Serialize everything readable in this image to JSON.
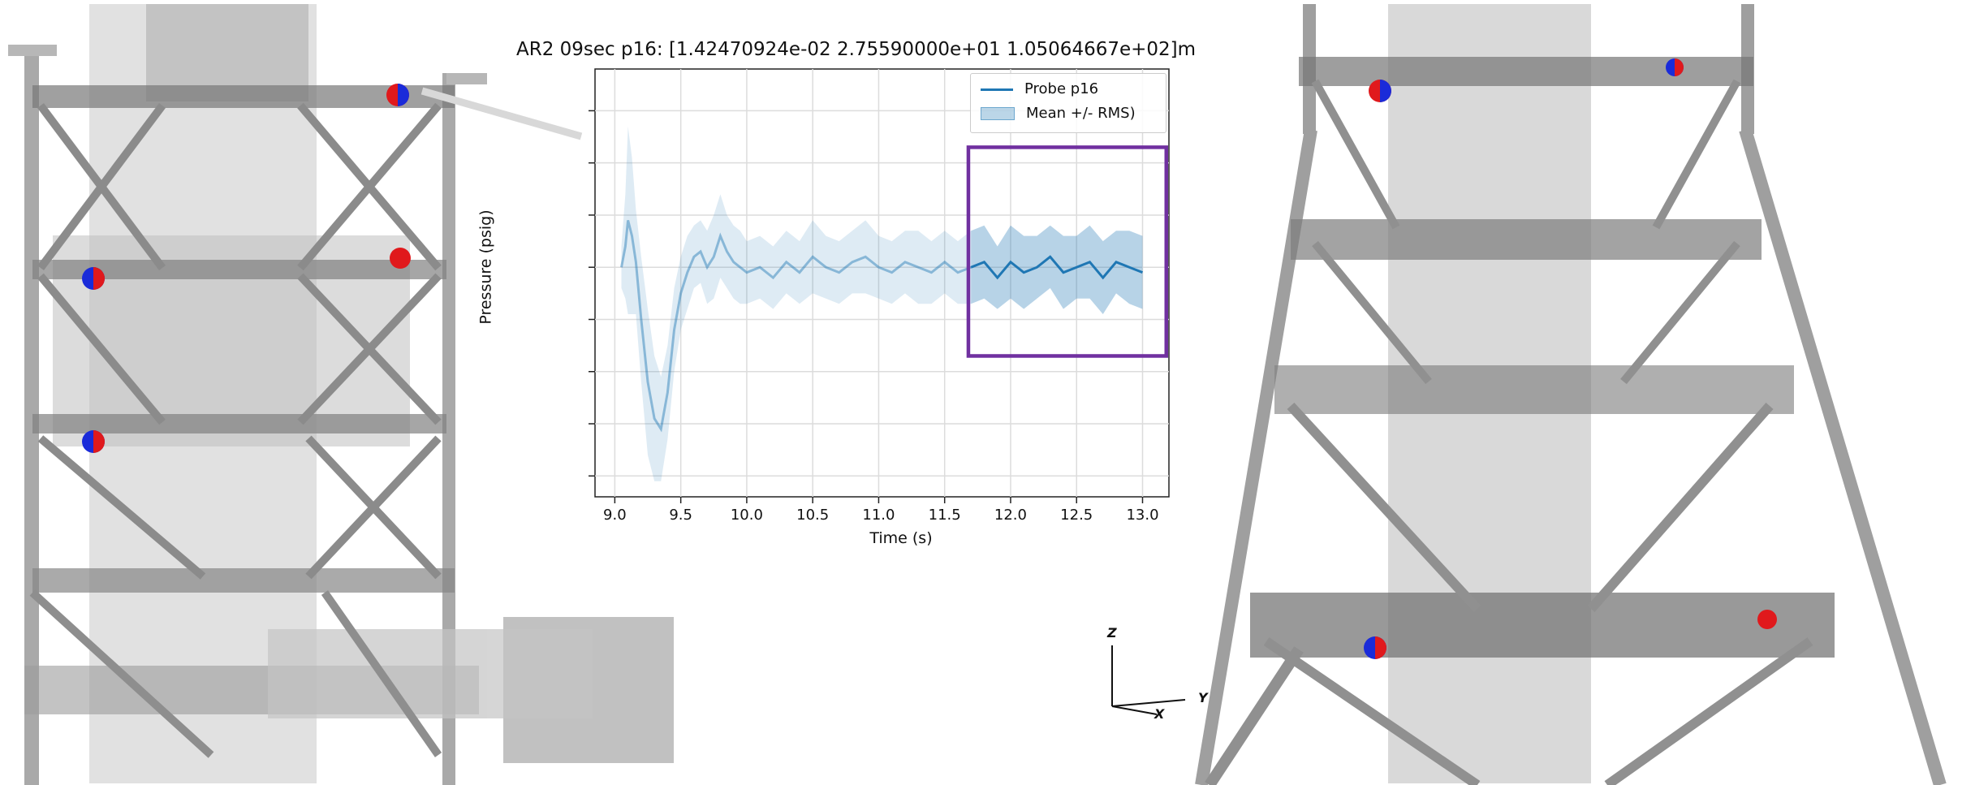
{
  "chart_data": {
    "type": "line",
    "title": "AR2 09sec p16: [1.42470924e-02 2.75590000e+01 1.05064667e+02]m",
    "xlabel": "Time (s)",
    "ylabel": "Pressure (psig)",
    "xlim": [
      8.85,
      13.2
    ],
    "ylim": [
      -4.4,
      3.8
    ],
    "x_ticks": [
      "9.0",
      "9.5",
      "10.0",
      "10.5",
      "11.0",
      "11.5",
      "12.0",
      "12.5",
      "13.0"
    ],
    "grid": true,
    "legend_position": "top-right",
    "legend": [
      "Probe p16",
      "Mean +/- RMS)"
    ],
    "highlight_window": {
      "x_start": 11.68,
      "x_end": 13.18,
      "y_min": -1.7,
      "y_max": 2.3
    },
    "series": [
      {
        "name": "Probe p16",
        "x": [
          9.05,
          9.08,
          9.1,
          9.13,
          9.16,
          9.2,
          9.25,
          9.3,
          9.35,
          9.4,
          9.45,
          9.5,
          9.55,
          9.6,
          9.65,
          9.7,
          9.75,
          9.8,
          9.85,
          9.9,
          9.95,
          10.0,
          10.1,
          10.2,
          10.3,
          10.4,
          10.5,
          10.6,
          10.7,
          10.8,
          10.9,
          11.0,
          11.1,
          11.2,
          11.3,
          11.4,
          11.5,
          11.6,
          11.7,
          11.8,
          11.9,
          12.0,
          12.1,
          12.2,
          12.3,
          12.4,
          12.5,
          12.6,
          12.7,
          12.8,
          12.9,
          13.0
        ],
        "values": [
          0.0,
          0.4,
          0.9,
          0.6,
          0.1,
          -1.0,
          -2.2,
          -2.9,
          -3.1,
          -2.4,
          -1.2,
          -0.5,
          -0.1,
          0.2,
          0.3,
          0.0,
          0.2,
          0.6,
          0.3,
          0.1,
          0.0,
          -0.1,
          0.0,
          -0.2,
          0.1,
          -0.1,
          0.2,
          0.0,
          -0.1,
          0.1,
          0.2,
          0.0,
          -0.1,
          0.1,
          0.0,
          -0.1,
          0.1,
          -0.1,
          0.0,
          0.1,
          -0.2,
          0.1,
          -0.1,
          0.0,
          0.2,
          -0.1,
          0.0,
          0.1,
          -0.2,
          0.1,
          0.0,
          -0.1
        ],
        "rms": [
          0.4,
          1.0,
          1.8,
          1.5,
          1.0,
          1.2,
          1.4,
          1.2,
          1.0,
          0.9,
          0.8,
          0.7,
          0.7,
          0.6,
          0.6,
          0.7,
          0.8,
          0.8,
          0.7,
          0.7,
          0.7,
          0.6,
          0.6,
          0.6,
          0.6,
          0.6,
          0.7,
          0.6,
          0.6,
          0.6,
          0.7,
          0.6,
          0.6,
          0.6,
          0.7,
          0.6,
          0.6,
          0.6,
          0.7,
          0.7,
          0.6,
          0.7,
          0.7,
          0.6,
          0.6,
          0.7,
          0.6,
          0.7,
          0.7,
          0.6,
          0.7,
          0.7
        ]
      }
    ]
  },
  "orientation_axes": {
    "z_label": "Z",
    "y_label": "Y",
    "x_label": "X"
  },
  "colors": {
    "series": "#1f77b4",
    "highlight": "#7030a0",
    "structure": "#8c8c8c",
    "probe_red": "#e0191c",
    "probe_blue": "#1a2bd9"
  }
}
